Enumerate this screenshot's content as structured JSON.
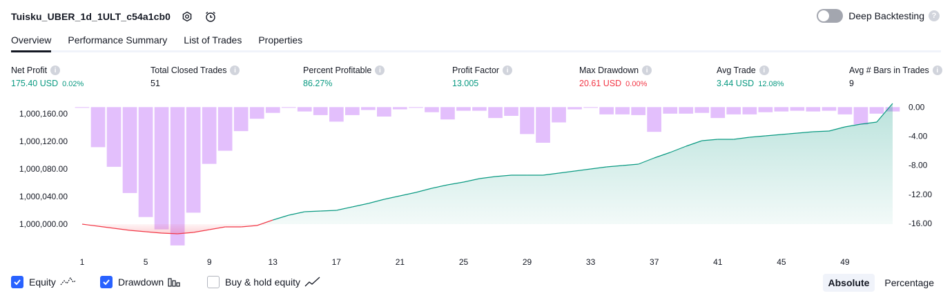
{
  "header": {
    "title": "Tuisku_UBER_1d_1ULT_c54a1cb0",
    "deep_backtesting_label": "Deep Backtesting"
  },
  "tabs": [
    {
      "label": "Overview",
      "active": true
    },
    {
      "label": "Performance Summary",
      "active": false
    },
    {
      "label": "List of Trades",
      "active": false
    },
    {
      "label": "Properties",
      "active": false
    }
  ],
  "metrics": [
    {
      "label": "Net Profit",
      "value": "175.40 USD",
      "pct": "0.02%",
      "color": "green"
    },
    {
      "label": "Total Closed Trades",
      "value": "51",
      "pct": "",
      "color": "dark"
    },
    {
      "label": "Percent Profitable",
      "value": "86.27%",
      "pct": "",
      "color": "green"
    },
    {
      "label": "Profit Factor",
      "value": "13.005",
      "pct": "",
      "color": "green"
    },
    {
      "label": "Max Drawdown",
      "value": "20.61 USD",
      "pct": "0.00%",
      "color": "red"
    },
    {
      "label": "Avg Trade",
      "value": "3.44 USD",
      "pct": "12.08%",
      "color": "green"
    },
    {
      "label": "Avg # Bars in Trades",
      "value": "9",
      "pct": "",
      "color": "dark"
    }
  ],
  "chart_data": {
    "type": "area",
    "x": [
      1,
      2,
      3,
      4,
      5,
      6,
      7,
      8,
      9,
      10,
      11,
      12,
      13,
      14,
      15,
      16,
      17,
      18,
      19,
      20,
      21,
      22,
      23,
      24,
      25,
      26,
      27,
      28,
      29,
      30,
      31,
      32,
      33,
      34,
      35,
      36,
      37,
      38,
      39,
      40,
      41,
      42,
      43,
      44,
      45,
      46,
      47,
      48,
      49,
      50,
      51,
      52
    ],
    "x_ticks": [
      "1",
      "5",
      "9",
      "13",
      "17",
      "21",
      "25",
      "29",
      "33",
      "37",
      "41",
      "45",
      "49"
    ],
    "left_axis": {
      "ticks": [
        "1,000,160.00",
        "1,000,120.00",
        "1,000,080.00",
        "1,000,040.00",
        "1,000,000.00"
      ],
      "ylim": [
        999985,
        1000175
      ]
    },
    "right_axis": {
      "ticks": [
        "0.00",
        "-4.00",
        "-8.00",
        "-12.00",
        "-16.00"
      ],
      "ylim": [
        -17.5,
        0.5
      ]
    },
    "series": [
      {
        "name": "Equity",
        "color": "#089981",
        "values": [
          1000000,
          999997,
          999994,
          999991,
          999989,
          999987,
          999986,
          999988,
          999992,
          999996,
          999996,
          999998,
          1000006,
          1000013,
          1000018,
          1000019,
          1000020,
          1000025,
          1000030,
          1000036,
          1000041,
          1000046,
          1000052,
          1000057,
          1000061,
          1000066,
          1000069,
          1000071,
          1000071,
          1000071,
          1000074,
          1000077,
          1000080,
          1000083,
          1000085,
          1000087,
          1000096,
          1000104,
          1000113,
          1000121,
          1000123,
          1000123,
          1000126,
          1000128,
          1000130,
          1000132,
          1000134,
          1000135,
          1000141,
          1000145,
          1000148,
          1000175
        ]
      },
      {
        "name": "Drawdown",
        "color": "#e1bcfc",
        "values": [
          -0.1,
          -5.5,
          -8.2,
          -11.8,
          -15.1,
          -16.8,
          -19.0,
          -14.5,
          -7.8,
          -6.0,
          -3.3,
          -1.6,
          -0.8,
          -0.1,
          -0.6,
          -1.1,
          -2.0,
          -1.1,
          -0.4,
          -1.3,
          -0.3,
          -0.1,
          -0.7,
          -1.7,
          -0.5,
          -0.5,
          -1.5,
          -1.2,
          -3.7,
          -4.9,
          -2.1,
          -0.3,
          -0.1,
          -1.0,
          -1.0,
          -1.1,
          -3.4,
          -0.9,
          -0.9,
          -0.8,
          -1.5,
          -1.0,
          -1.0,
          -0.7,
          -0.6,
          -0.5,
          -0.6,
          -0.5,
          -1.0,
          -2.4,
          -0.9,
          -0.6
        ]
      }
    ],
    "buy_hold_equity_visible": false
  },
  "legend": {
    "equity_label": "Equity",
    "drawdown_label": "Drawdown",
    "buyhold_label": "Buy & hold equity"
  },
  "view_mode": {
    "absolute_label": "Absolute",
    "percentage_label": "Percentage",
    "selected": "Absolute"
  }
}
